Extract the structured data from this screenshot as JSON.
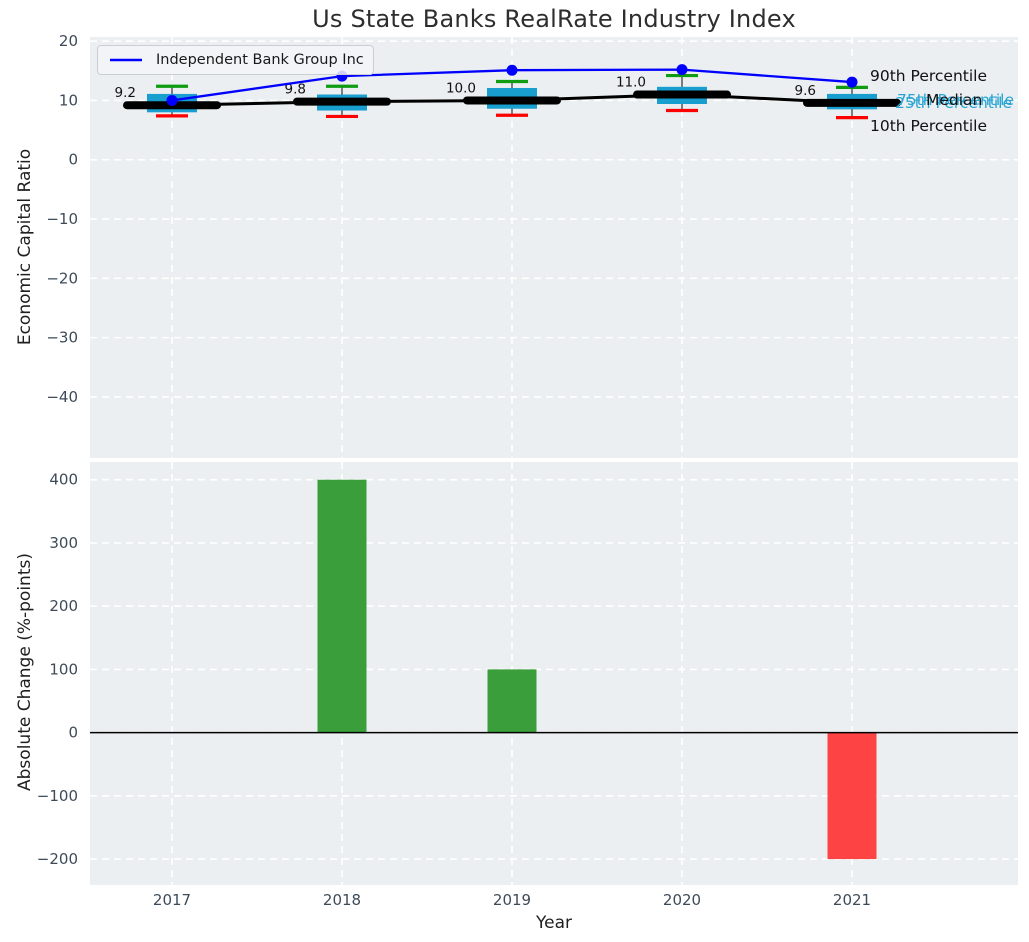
{
  "title": "Us State Banks RealRate Industry Index",
  "legend": {
    "label": "Independent Bank Group Inc"
  },
  "annotations": {
    "p90": "90th Percentile",
    "p75": "75th Percentile",
    "median": "Median",
    "p25": "25th Percentile",
    "p10": "10th Percentile"
  },
  "colors": {
    "company_line": "#0000ff",
    "box_fill": "#189fd0",
    "whisker": "#4a4a4a",
    "p90_cap": "#0f9b12",
    "p10_cap": "#ff0000",
    "median_line": "#000000",
    "bar_positive": "#3a9e3a",
    "bar_negative": "#fd4343",
    "plot_bg": "#ebeff1",
    "grid": "#ffffff",
    "tick_text": "#3d4b59",
    "axis_label_text": "#1f1f1f",
    "median_label_text": "#111111",
    "annotation_cyan": "#2aa5d3",
    "title_text": "#2e2e2e",
    "zero_line": "#000000"
  },
  "chart_data": [
    {
      "type": "box-line",
      "ylabel": "Economic Capital Ratio",
      "x": [
        "2017",
        "2018",
        "2019",
        "2020",
        "2021"
      ],
      "yticks": {
        "values": [
          20,
          10,
          0,
          -10,
          -20,
          -30,
          -40
        ],
        "labels": [
          "20",
          "10",
          "0",
          "−10",
          "−20",
          "−30",
          "−40"
        ]
      },
      "ylim": [
        -50.3,
        20.7
      ],
      "grid": true,
      "legend_position": "upper left",
      "series": [
        {
          "name": "Independent Bank Group Inc",
          "type": "line",
          "values": [
            10.0,
            14.1,
            15.1,
            15.2,
            13.1
          ]
        },
        {
          "name": "Median",
          "type": "line",
          "values": [
            9.2,
            9.8,
            10.0,
            11.0,
            9.6
          ]
        }
      ],
      "median_labels": [
        "9.2",
        "9.8",
        "10.0",
        "11.0",
        "9.6"
      ],
      "boxes": {
        "p90": [
          12.4,
          12.4,
          13.2,
          14.2,
          12.2
        ],
        "p75": [
          11.1,
          11.0,
          12.1,
          12.3,
          11.1
        ],
        "median": [
          9.2,
          9.8,
          10.0,
          11.0,
          9.6
        ],
        "p25": [
          8.0,
          8.3,
          8.6,
          9.4,
          8.5
        ],
        "p10": [
          7.4,
          7.3,
          7.5,
          8.3,
          7.1
        ]
      }
    },
    {
      "type": "bar",
      "ylabel": "Absolute Change (%-points)",
      "xlabel": "Year",
      "categories": [
        "2017",
        "2018",
        "2019",
        "2020",
        "2021"
      ],
      "values": [
        0,
        400,
        100,
        0,
        -200
      ],
      "yticks": {
        "values": [
          400,
          300,
          200,
          100,
          0,
          -100,
          -200
        ],
        "labels": [
          "400",
          "300",
          "200",
          "100",
          "0",
          "−100",
          "−200"
        ]
      },
      "ylim": [
        -241,
        428
      ],
      "grid": true
    }
  ]
}
